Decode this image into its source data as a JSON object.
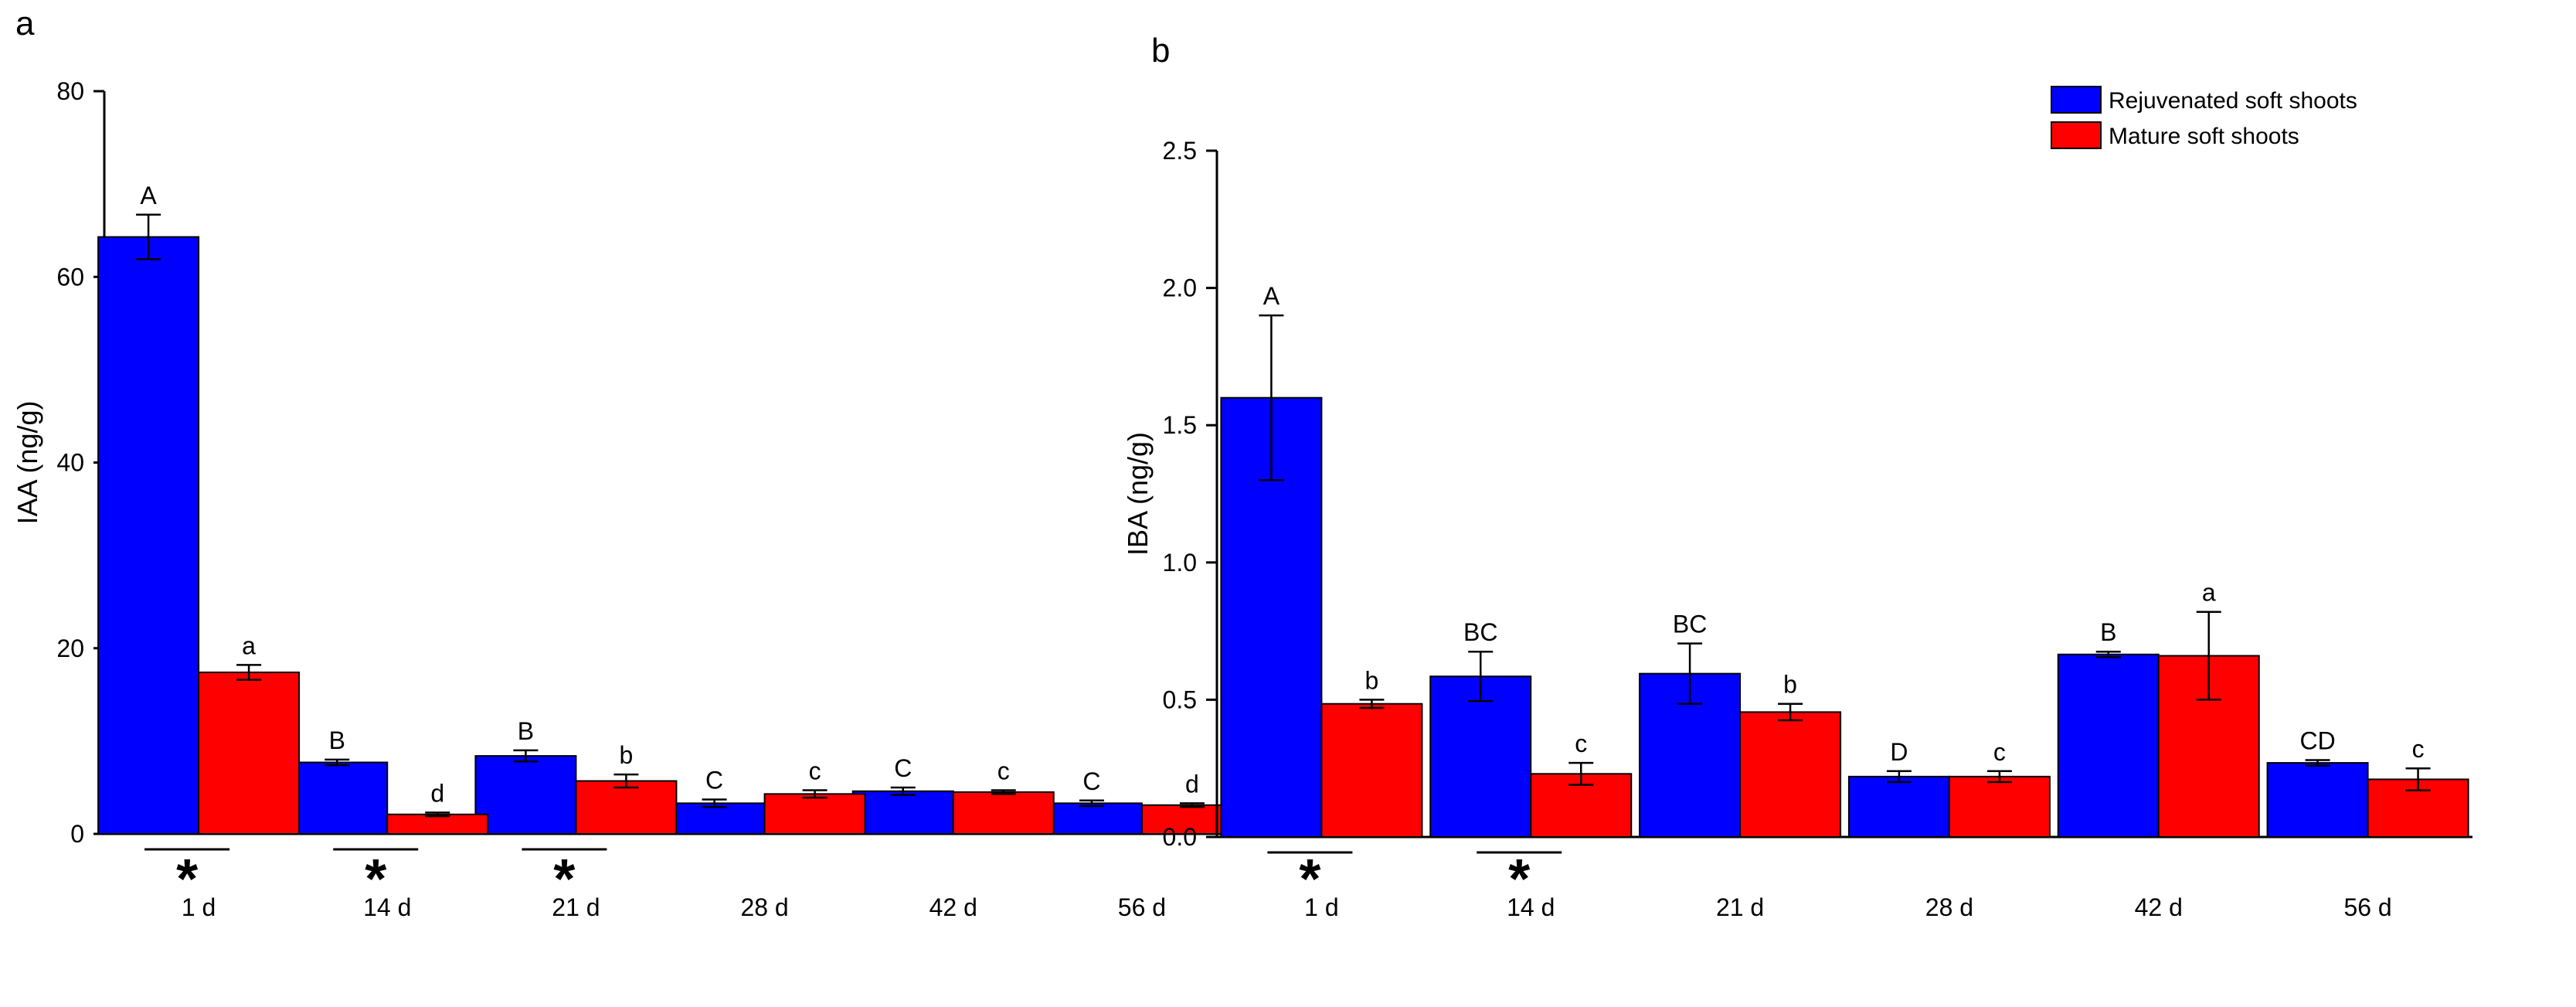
{
  "chart_data": [
    {
      "type": "bar",
      "panel_label": "a",
      "title": "",
      "xlabel": "",
      "ylabel": "IAA (ng/g)",
      "ylim": [
        0,
        80
      ],
      "yticks": [
        "0",
        "20",
        "40",
        "60",
        "80"
      ],
      "categories": [
        "1 d",
        "14 d",
        "21 d",
        "28 d",
        "42 d",
        "56 d"
      ],
      "series": [
        {
          "name": "Rejuvenated soft shoots",
          "color": "#0000FF",
          "values": [
            64.3,
            7.7,
            8.4,
            3.3,
            4.6,
            3.3
          ],
          "errors": [
            2.4,
            0.3,
            0.6,
            0.4,
            0.4,
            0.3
          ],
          "letters": [
            "A",
            "B",
            "B",
            "C",
            "C",
            "C"
          ]
        },
        {
          "name": "Mature soft shoots",
          "color": "#FF0000",
          "values": [
            17.4,
            2.1,
            5.7,
            4.3,
            4.5,
            3.1
          ],
          "errors": [
            0.8,
            0.2,
            0.7,
            0.4,
            0.2,
            0.2
          ],
          "letters": [
            "a",
            "d",
            "b",
            "c",
            "c",
            "d"
          ]
        }
      ],
      "significance": [
        true,
        true,
        true,
        false,
        false,
        false
      ],
      "significance_marker": "*"
    },
    {
      "type": "bar",
      "panel_label": "b",
      "title": "",
      "xlabel": "",
      "ylabel": "IBA (ng/g)",
      "ylim": [
        0,
        2.5
      ],
      "yticks": [
        "0.0",
        "0.5",
        "1.0",
        "1.5",
        "2.0",
        "2.5"
      ],
      "categories": [
        "1 d",
        "14 d",
        "21 d",
        "28 d",
        "42 d",
        "56 d"
      ],
      "series": [
        {
          "name": "Rejuvenated soft shoots",
          "color": "#0000FF",
          "values": [
            1.6,
            0.585,
            0.595,
            0.22,
            0.665,
            0.27
          ],
          "errors": [
            0.3,
            0.09,
            0.11,
            0.02,
            0.01,
            0.01
          ],
          "letters": [
            "A",
            "BC",
            "BC",
            "D",
            "B",
            "CD"
          ]
        },
        {
          "name": "Mature soft shoots",
          "color": "#FF0000",
          "values": [
            0.485,
            0.23,
            0.455,
            0.22,
            0.66,
            0.21
          ],
          "errors": [
            0.015,
            0.04,
            0.03,
            0.02,
            0.16,
            0.04
          ],
          "letters": [
            "b",
            "c",
            "b",
            "c",
            "a",
            "c"
          ]
        }
      ],
      "significance": [
        true,
        true,
        false,
        false,
        false,
        false
      ],
      "significance_marker": "*",
      "legend": {
        "position": "top-right",
        "entries": [
          "Rejuvenated soft shoots",
          "Mature soft shoots"
        ]
      }
    }
  ]
}
